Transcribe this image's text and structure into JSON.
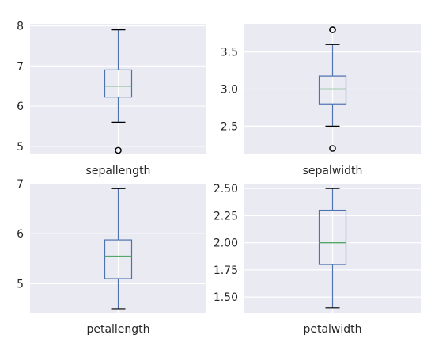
{
  "colors": {
    "panel_bg": "#eaeaf2",
    "grid": "#ffffff",
    "box": "#4c72b0",
    "median": "#55a868",
    "flier": "#000000",
    "text": "#262626"
  },
  "chart_data": [
    {
      "type": "box",
      "categories": [
        "sepallength"
      ],
      "ylim": [
        4.8,
        8.05
      ],
      "yticks": [
        5,
        6,
        7,
        8
      ],
      "ytick_labels": [
        "5",
        "6",
        "7",
        "8"
      ],
      "grid": true,
      "box": {
        "whislo": 5.6,
        "q1": 6.225,
        "med": 6.5,
        "q3": 6.9,
        "whishi": 7.9,
        "fliers": [
          4.9
        ]
      }
    },
    {
      "type": "box",
      "categories": [
        "sepalwidth"
      ],
      "ylim": [
        2.12,
        3.88
      ],
      "yticks": [
        2.5,
        3.0,
        3.5
      ],
      "ytick_labels": [
        "2.5",
        "3.0",
        "3.5"
      ],
      "grid": true,
      "box": {
        "whislo": 2.5,
        "q1": 2.8,
        "med": 3.0,
        "q3": 3.175,
        "whishi": 3.6,
        "fliers": [
          2.2,
          3.8,
          3.8
        ]
      }
    },
    {
      "type": "box",
      "categories": [
        "petallength"
      ],
      "ylim": [
        4.42,
        7.0
      ],
      "yticks": [
        5,
        6,
        7
      ],
      "ytick_labels": [
        "5",
        "6",
        "7"
      ],
      "grid": true,
      "box": {
        "whislo": 4.5,
        "q1": 5.1,
        "med": 5.55,
        "q3": 5.875,
        "whishi": 6.9,
        "fliers": []
      }
    },
    {
      "type": "box",
      "categories": [
        "petalwidth"
      ],
      "ylim": [
        1.355,
        2.545
      ],
      "yticks": [
        1.5,
        1.75,
        2.0,
        2.25,
        2.5
      ],
      "ytick_labels": [
        "1.50",
        "1.75",
        "2.00",
        "2.25",
        "2.50"
      ],
      "grid": true,
      "box": {
        "whislo": 1.4,
        "q1": 1.8,
        "med": 2.0,
        "q3": 2.3,
        "whishi": 2.5,
        "fliers": []
      }
    }
  ]
}
